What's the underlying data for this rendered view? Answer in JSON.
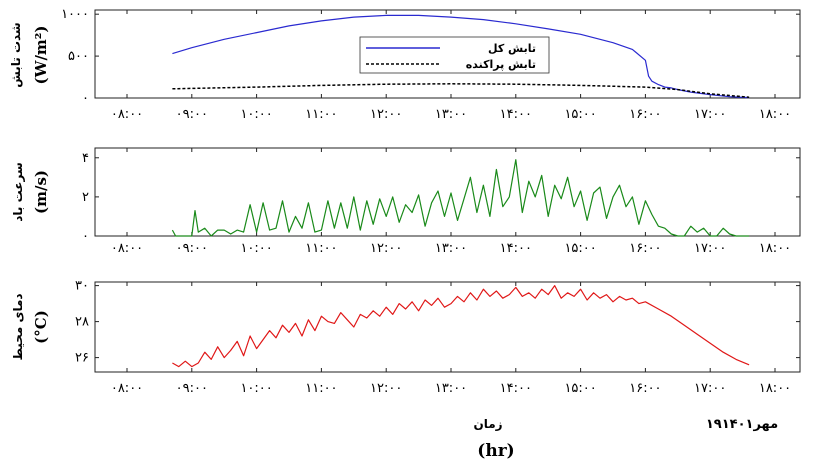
{
  "x_axis": {
    "ticks": [
      "۰۸:۰۰",
      "۰۹:۰۰",
      "۱۰:۰۰",
      "۱۱:۰۰",
      "۱۲:۰۰",
      "۱۳:۰۰",
      "۱۴:۰۰",
      "۱۵:۰۰",
      "۱۶:۰۰",
      "۱۷:۰۰",
      "۱۸:۰۰"
    ],
    "label": "زمان",
    "unit": "(hr)",
    "date": "۱۹مهر۱۴۰۱"
  },
  "colors": {
    "global": "#2a2ad0",
    "diffuse": "#000000",
    "wind": "#1a8a1a",
    "temp": "#e01818"
  },
  "chart_data": [
    {
      "type": "line",
      "ylabel": "شدت تابش",
      "yunit": "(W/m²)",
      "yticks": [
        "۰",
        "۵۰۰",
        "۱۰۰۰"
      ],
      "ylim": [
        0,
        1050
      ],
      "xlim": [
        8,
        18
      ],
      "legend": {
        "position": "top-center",
        "entries": [
          "تابش کل",
          "تابش پراکنده"
        ]
      },
      "series": [
        {
          "name": "تابش کل",
          "style": "solid",
          "x": [
            8.7,
            9,
            9.5,
            10,
            10.5,
            11,
            11.5,
            12,
            12.5,
            13,
            13.5,
            14,
            14.5,
            15,
            15.5,
            15.8,
            16,
            16.05,
            16.1,
            16.2,
            16.3,
            16.4,
            16.5,
            16.7,
            17,
            17.3,
            17.6
          ],
          "y": [
            530,
            600,
            700,
            780,
            860,
            920,
            965,
            985,
            985,
            965,
            935,
            885,
            825,
            760,
            660,
            580,
            450,
            260,
            200,
            160,
            130,
            120,
            100,
            70,
            40,
            15,
            5
          ]
        },
        {
          "name": "تابش پراکنده",
          "style": "dashed",
          "x": [
            8.7,
            9,
            10,
            11,
            12,
            13,
            14,
            15,
            16,
            16.5,
            17,
            17.6
          ],
          "y": [
            110,
            115,
            130,
            150,
            165,
            170,
            165,
            150,
            130,
            100,
            50,
            10
          ]
        }
      ]
    },
    {
      "type": "line",
      "ylabel": "سرعت باد",
      "yunit": "(m/s)",
      "yticks": [
        "۰",
        "۲",
        "۴"
      ],
      "ylim": [
        0,
        4.5
      ],
      "xlim": [
        8,
        18
      ],
      "series": [
        {
          "name": "",
          "x": [
            8.7,
            8.75,
            8.8,
            8.9,
            9.0,
            9.05,
            9.1,
            9.2,
            9.3,
            9.4,
            9.5,
            9.6,
            9.7,
            9.8,
            9.9,
            10.0,
            10.1,
            10.2,
            10.3,
            10.4,
            10.5,
            10.6,
            10.7,
            10.8,
            10.9,
            11.0,
            11.1,
            11.2,
            11.3,
            11.4,
            11.5,
            11.6,
            11.7,
            11.8,
            11.9,
            12.0,
            12.1,
            12.2,
            12.3,
            12.4,
            12.5,
            12.6,
            12.7,
            12.8,
            12.9,
            13.0,
            13.1,
            13.2,
            13.3,
            13.4,
            13.5,
            13.6,
            13.7,
            13.8,
            13.9,
            14.0,
            14.1,
            14.2,
            14.3,
            14.4,
            14.5,
            14.6,
            14.7,
            14.8,
            14.9,
            15.0,
            15.1,
            15.2,
            15.3,
            15.4,
            15.5,
            15.6,
            15.7,
            15.8,
            15.9,
            16.0,
            16.1,
            16.2,
            16.3,
            16.4,
            16.5,
            16.6,
            16.7,
            16.8,
            16.9,
            17.0,
            17.1,
            17.2,
            17.3,
            17.4,
            17.5,
            17.6
          ],
          "y": [
            0.3,
            0,
            0,
            0,
            0,
            1.3,
            0.2,
            0.4,
            0,
            0.3,
            0.3,
            0.1,
            0.3,
            0.2,
            1.6,
            0.2,
            1.7,
            0.3,
            0.4,
            1.8,
            0.2,
            1.0,
            0.4,
            1.7,
            0.2,
            0.3,
            1.8,
            0.4,
            1.7,
            0.4,
            2.0,
            0.3,
            1.8,
            0.6,
            1.9,
            1.0,
            2.0,
            0.7,
            1.6,
            1.2,
            2.1,
            0.5,
            1.7,
            2.3,
            1.0,
            2.2,
            0.8,
            1.9,
            3.0,
            1.2,
            2.6,
            1.0,
            3.4,
            1.5,
            2.0,
            3.9,
            1.2,
            2.8,
            2.0,
            3.1,
            1.0,
            2.6,
            1.9,
            3.0,
            1.5,
            2.3,
            0.8,
            2.2,
            2.5,
            0.9,
            2.0,
            2.6,
            1.5,
            2.0,
            0.6,
            1.8,
            1.1,
            0.5,
            0.4,
            0.1,
            0,
            0,
            0.5,
            0.2,
            0.4,
            0,
            0,
            0.4,
            0.1,
            0,
            0,
            0
          ]
        }
      ]
    },
    {
      "type": "line",
      "ylabel": "دمای محیط",
      "yunit": "(°C)",
      "yticks": [
        "۲۶",
        "۲۸",
        "۳۰"
      ],
      "ylim": [
        25.2,
        30.2
      ],
      "xlim": [
        8,
        18
      ],
      "series": [
        {
          "name": "",
          "x": [
            8.7,
            8.8,
            8.9,
            9.0,
            9.1,
            9.2,
            9.3,
            9.4,
            9.5,
            9.6,
            9.7,
            9.8,
            9.9,
            10.0,
            10.1,
            10.2,
            10.3,
            10.4,
            10.5,
            10.6,
            10.7,
            10.8,
            10.9,
            11.0,
            11.1,
            11.2,
            11.3,
            11.4,
            11.5,
            11.6,
            11.7,
            11.8,
            11.9,
            12.0,
            12.1,
            12.2,
            12.3,
            12.4,
            12.5,
            12.6,
            12.7,
            12.8,
            12.9,
            13.0,
            13.1,
            13.2,
            13.3,
            13.4,
            13.5,
            13.6,
            13.7,
            13.8,
            13.9,
            14.0,
            14.1,
            14.2,
            14.3,
            14.4,
            14.5,
            14.6,
            14.7,
            14.8,
            14.9,
            15.0,
            15.1,
            15.2,
            15.3,
            15.4,
            15.5,
            15.6,
            15.7,
            15.8,
            15.9,
            16.0,
            16.2,
            16.4,
            16.6,
            16.8,
            17.0,
            17.2,
            17.4,
            17.6
          ],
          "y": [
            25.7,
            25.5,
            25.8,
            25.5,
            25.7,
            26.3,
            25.9,
            26.6,
            26.0,
            26.4,
            26.9,
            26.1,
            27.2,
            26.5,
            27.0,
            27.5,
            27.1,
            27.8,
            27.4,
            27.9,
            27.2,
            28.1,
            27.5,
            28.3,
            28.0,
            27.9,
            28.5,
            28.1,
            27.7,
            28.4,
            28.2,
            28.6,
            28.3,
            28.8,
            28.4,
            29.0,
            28.7,
            29.1,
            28.6,
            29.2,
            28.9,
            29.3,
            28.8,
            29.0,
            29.4,
            29.1,
            29.6,
            29.2,
            29.8,
            29.4,
            29.7,
            29.3,
            29.5,
            29.9,
            29.4,
            29.6,
            29.3,
            29.8,
            29.5,
            30.0,
            29.3,
            29.6,
            29.4,
            29.8,
            29.2,
            29.6,
            29.3,
            29.5,
            29.1,
            29.4,
            29.2,
            29.3,
            29.0,
            29.1,
            28.7,
            28.3,
            27.8,
            27.3,
            26.8,
            26.3,
            25.9,
            25.6
          ]
        }
      ]
    }
  ]
}
